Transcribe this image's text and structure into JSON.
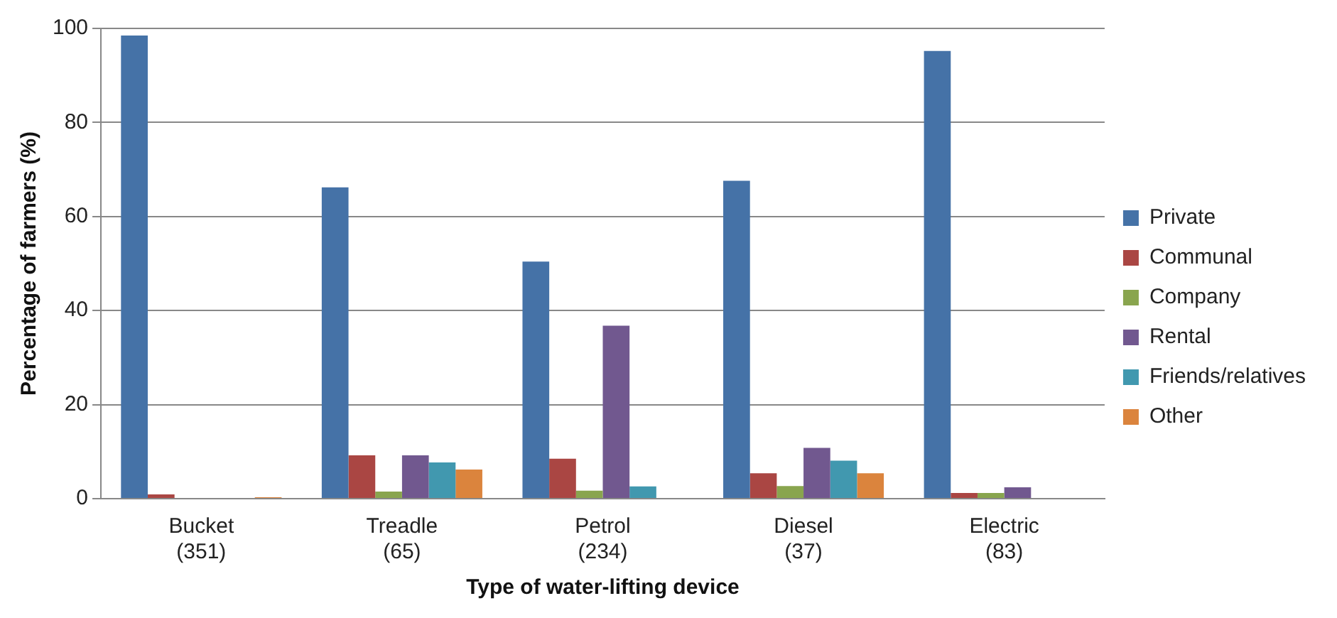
{
  "chart_data": {
    "type": "bar",
    "xlabel": "Type of water-lifting device",
    "ylabel": "Percentage of farmers (%)",
    "categories": [
      "Bucket\n(351)",
      "Treadle\n(65)",
      "Petrol\n(234)",
      "Diesel\n(37)",
      "Electric\n(83)"
    ],
    "series": [
      {
        "name": "Private",
        "color": "#4572a7",
        "values": [
          98.5,
          66.2,
          50.4,
          67.6,
          95.2
        ]
      },
      {
        "name": "Communal",
        "color": "#aa4643",
        "values": [
          0.9,
          9.2,
          8.5,
          5.4,
          1.2
        ]
      },
      {
        "name": "Company",
        "color": "#89a54e",
        "values": [
          null,
          1.5,
          1.7,
          2.7,
          1.2
        ]
      },
      {
        "name": "Rental",
        "color": "#71588f",
        "values": [
          0,
          9.2,
          36.8,
          10.8,
          2.4
        ]
      },
      {
        "name": "Friends/relatives",
        "color": "#4198af",
        "values": [
          0,
          7.7,
          2.6,
          8.1,
          0
        ]
      },
      {
        "name": "Other",
        "color": "#db843d",
        "values": [
          0.3,
          6.2,
          0,
          5.4,
          0
        ]
      }
    ],
    "ylim": [
      0,
      100
    ],
    "yticks": [
      0,
      20,
      40,
      60,
      80,
      100
    ],
    "grid": "y",
    "legend": "right"
  }
}
